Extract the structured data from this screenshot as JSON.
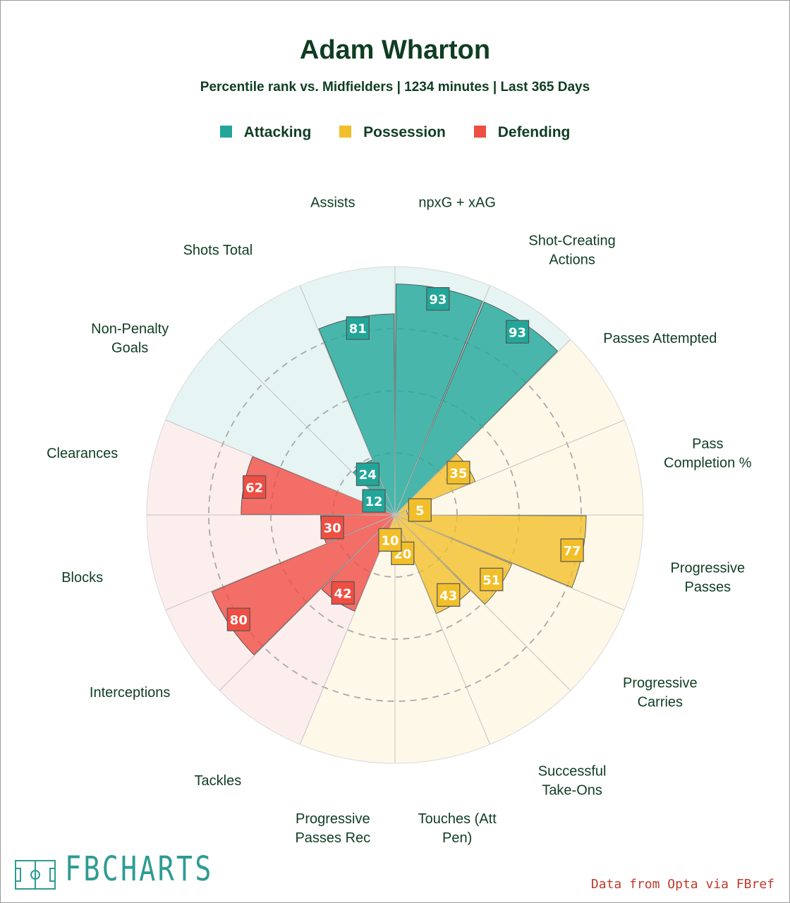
{
  "title": "Adam Wharton",
  "subtitle": "Percentile rank vs. Midfielders | 1234 minutes | Last 365 Days",
  "legend": [
    {
      "label": "Attacking",
      "color": "#22a699"
    },
    {
      "label": "Possession",
      "color": "#f2bf2a"
    },
    {
      "label": "Defending",
      "color": "#ef4e43"
    }
  ],
  "logo": {
    "text": "FBCHARTS"
  },
  "credit": "Data from Opta via FBref",
  "colors": {
    "attacking": "#22a699",
    "possession": "#f2bf2a",
    "defending": "#ef4e43",
    "attacking_bg": "#e6f5f3",
    "possession_bg": "#fdf8e8",
    "defending_bg": "#fdeeee",
    "text": "#0f3d22"
  },
  "chart_data": {
    "type": "radar-bar",
    "rlim": [
      0,
      100
    ],
    "start": "12 o'clock, clockwise",
    "grid": "dashed rings at 25, 50, 75",
    "categories": [
      {
        "label": "npxG + xAG",
        "group": "attacking",
        "value": 93
      },
      {
        "label": "Shot-Creating Actions",
        "group": "attacking",
        "value": 93
      },
      {
        "label": "Passes Attempted",
        "group": "possession",
        "value": 35
      },
      {
        "label": "Pass Completion %",
        "group": "possession",
        "value": 5
      },
      {
        "label": "Progressive Passes",
        "group": "possession",
        "value": 77
      },
      {
        "label": "Progressive Carries",
        "group": "possession",
        "value": 51
      },
      {
        "label": "Successful Take-Ons",
        "group": "possession",
        "value": 43
      },
      {
        "label": "Touches (Att Pen)",
        "group": "possession",
        "value": 20
      },
      {
        "label": "Progressive Passes Rec",
        "group": "possession",
        "value": 10
      },
      {
        "label": "Tackles",
        "group": "defending",
        "value": 42
      },
      {
        "label": "Interceptions",
        "group": "defending",
        "value": 80
      },
      {
        "label": "Blocks",
        "group": "defending",
        "value": 30
      },
      {
        "label": "Clearances",
        "group": "defending",
        "value": 62
      },
      {
        "label": "Non-Penalty Goals",
        "group": "attacking",
        "value": 12
      },
      {
        "label": "Shots Total",
        "group": "attacking",
        "value": 24
      },
      {
        "label": "Assists",
        "group": "attacking",
        "value": 81
      }
    ]
  }
}
